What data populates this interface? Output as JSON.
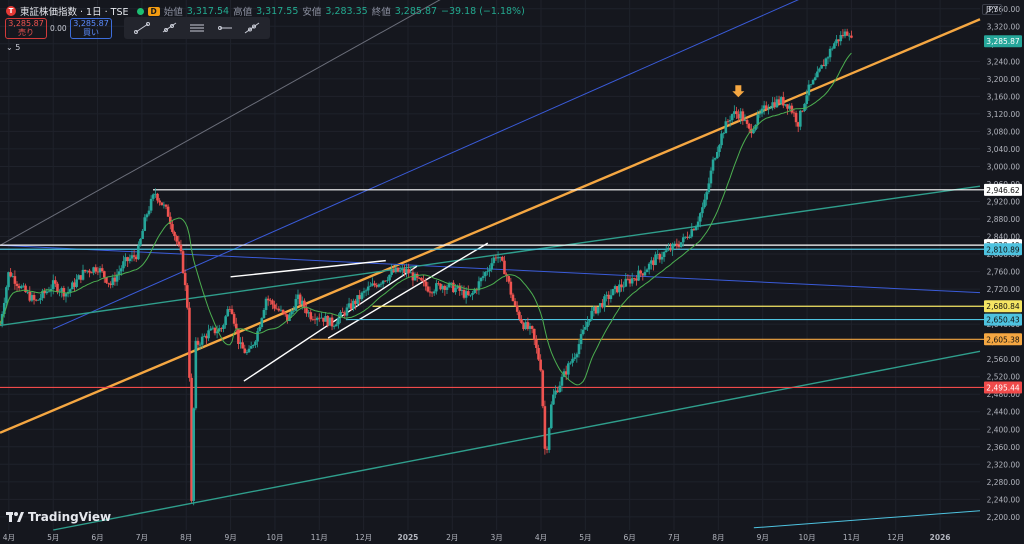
{
  "header": {
    "symbol": "東証株価指数 · 1日 · TSE",
    "d_badge": "D",
    "open_label": "始値",
    "open": "3,317.54",
    "high_label": "高値",
    "high": "3,317.55",
    "low_label": "安値",
    "low": "3,283.35",
    "close_label": "終値",
    "close": "3,285.87",
    "change": "−39.18 (−1.18%)"
  },
  "trade": {
    "sell_price": "3,285.87",
    "sell_label": "売り",
    "spread": "0.00",
    "buy_price": "3,285.87",
    "buy_label": "買い"
  },
  "toolbar": {
    "tools": [
      "trend-line-icon",
      "ray-icon",
      "parallel-channel-icon",
      "horizontal-ray-icon",
      "extended-line-icon"
    ]
  },
  "indicator_toggle": "5",
  "currency": "JPY",
  "brand": "TradingView",
  "chart_data": {
    "type": "candlestick",
    "ylim": [
      2170,
      3380
    ],
    "y_ticks": [
      2200,
      2240,
      2280,
      2320,
      2360,
      2400,
      2440,
      2480,
      2520,
      2560,
      2600,
      2640,
      2680,
      2720,
      2760,
      2800,
      2840,
      2880,
      2920,
      2960,
      3000,
      3040,
      3080,
      3120,
      3160,
      3200,
      3240,
      3280,
      3320,
      3360
    ],
    "x_labels": [
      "4月",
      "5月",
      "6月",
      "7月",
      "8月",
      "9月",
      "10月",
      "11月",
      "12月",
      "2025",
      "2月",
      "3月",
      "4月",
      "5月",
      "6月",
      "7月",
      "8月",
      "9月",
      "10月",
      "11月",
      "12月",
      "2026"
    ],
    "x_label_months": [
      0,
      1,
      2,
      3,
      4,
      5,
      6,
      7,
      8,
      9,
      10,
      11,
      12,
      13,
      14,
      15,
      16,
      17,
      18,
      19,
      20,
      21
    ],
    "x_range_months": [
      -0.2,
      21.9
    ],
    "price_path": [
      [
        -0.2,
        2640
      ],
      [
        0,
        2760
      ],
      [
        0.3,
        2720
      ],
      [
        0.6,
        2690
      ],
      [
        1,
        2730
      ],
      [
        1.3,
        2710
      ],
      [
        1.7,
        2760
      ],
      [
        2,
        2770
      ],
      [
        2.3,
        2730
      ],
      [
        2.6,
        2780
      ],
      [
        2.9,
        2800
      ],
      [
        3.1,
        2890
      ],
      [
        3.3,
        2940
      ],
      [
        3.6,
        2890
      ],
      [
        3.9,
        2790
      ],
      [
        4.05,
        2660
      ],
      [
        4.12,
        2230
      ],
      [
        4.2,
        2590
      ],
      [
        4.5,
        2620
      ],
      [
        4.8,
        2630
      ],
      [
        5,
        2690
      ],
      [
        5.2,
        2590
      ],
      [
        5.4,
        2570
      ],
      [
        5.6,
        2620
      ],
      [
        5.8,
        2700
      ],
      [
        6,
        2680
      ],
      [
        6.3,
        2650
      ],
      [
        6.5,
        2700
      ],
      [
        6.8,
        2660
      ],
      [
        7,
        2660
      ],
      [
        7.3,
        2640
      ],
      [
        7.6,
        2670
      ],
      [
        7.9,
        2700
      ],
      [
        8.1,
        2720
      ],
      [
        8.4,
        2740
      ],
      [
        8.7,
        2760
      ],
      [
        9,
        2760
      ],
      [
        9.2,
        2740
      ],
      [
        9.5,
        2720
      ],
      [
        9.8,
        2730
      ],
      [
        10.1,
        2720
      ],
      [
        10.4,
        2700
      ],
      [
        10.7,
        2750
      ],
      [
        11,
        2800
      ],
      [
        11.2,
        2760
      ],
      [
        11.4,
        2680
      ],
      [
        11.6,
        2640
      ],
      [
        11.8,
        2620
      ],
      [
        12.0,
        2540
      ],
      [
        12.1,
        2330
      ],
      [
        12.25,
        2470
      ],
      [
        12.5,
        2520
      ],
      [
        12.8,
        2580
      ],
      [
        13.1,
        2660
      ],
      [
        13.4,
        2690
      ],
      [
        13.7,
        2720
      ],
      [
        14,
        2740
      ],
      [
        14.3,
        2760
      ],
      [
        14.6,
        2790
      ],
      [
        14.9,
        2810
      ],
      [
        15.2,
        2830
      ],
      [
        15.5,
        2870
      ],
      [
        15.7,
        2920
      ],
      [
        15.9,
        3020
      ],
      [
        16.1,
        3080
      ],
      [
        16.3,
        3120
      ],
      [
        16.5,
        3120
      ],
      [
        16.7,
        3080
      ],
      [
        16.9,
        3110
      ],
      [
        17.1,
        3140
      ],
      [
        17.4,
        3150
      ],
      [
        17.6,
        3140
      ],
      [
        17.8,
        3100
      ],
      [
        18.0,
        3170
      ],
      [
        18.2,
        3200
      ],
      [
        18.4,
        3240
      ],
      [
        18.6,
        3280
      ],
      [
        18.8,
        3300
      ],
      [
        18.95,
        3310
      ],
      [
        19.0,
        3286
      ]
    ],
    "moving_average_color": "#4caf50",
    "horizontal_levels": [
      {
        "value": 2946.62,
        "label": "2,946.62",
        "color": "#ffffff",
        "text_color": "#111111",
        "start_month": 3.25
      },
      {
        "value": 2820.4,
        "label": "2,820.40",
        "color": "#ffffff",
        "text_color": "#111111",
        "start_month": -0.2
      },
      {
        "value": 2810.89,
        "label": "2,810.89",
        "color": "#4ec3e0",
        "text_color": "#111111",
        "start_month": -0.2
      },
      {
        "value": 2680.84,
        "label": "2,680.84",
        "color": "#f5e663",
        "text_color": "#111111",
        "start_month": 8.2
      },
      {
        "value": 2650.43,
        "label": "2,650.43",
        "color": "#4ec3e0",
        "text_color": "#111111",
        "start_month": 7.6
      },
      {
        "value": 2605.38,
        "label": "2,605.38",
        "color": "#f5a742",
        "text_color": "#111111",
        "start_month": 6.8
      },
      {
        "value": 2495.44,
        "label": "2,495.44",
        "color": "#f04a4a",
        "text_color": "#ffffff",
        "start_month": -0.2
      }
    ],
    "current_price": {
      "value": 3285.87,
      "label": "3,285.87",
      "color": "#26a69a"
    },
    "trend_lines": [
      {
        "name": "orange-resistance",
        "color": "#f5a742",
        "width": 2.4,
        "points": [
          [
            -0.2,
            2392
          ],
          [
            21.9,
            3336
          ]
        ]
      },
      {
        "name": "blue-upper",
        "color": "#3a5bd9",
        "width": 1,
        "points": [
          [
            1.0,
            2629
          ],
          [
            17.9,
            3385
          ]
        ]
      },
      {
        "name": "grey-upper",
        "color": "#6b6e7a",
        "width": 1,
        "points": [
          [
            -0.2,
            2820
          ],
          [
            9.8,
            3385
          ]
        ]
      },
      {
        "name": "blue-down",
        "color": "#3a5bd9",
        "width": 1,
        "points": [
          [
            -0.2,
            2820
          ],
          [
            21.9,
            2712
          ]
        ]
      },
      {
        "name": "teal-mid",
        "color": "#2f9e8c",
        "width": 1.4,
        "points": [
          [
            -0.2,
            2637
          ],
          [
            21.9,
            2955
          ]
        ]
      },
      {
        "name": "teal-low",
        "color": "#2f9e8c",
        "width": 1.4,
        "points": [
          [
            1.0,
            2170
          ],
          [
            21.9,
            2578
          ]
        ]
      },
      {
        "name": "cyan-bottom",
        "color": "#4ec3e0",
        "width": 1,
        "points": [
          [
            16.8,
            2175
          ],
          [
            21.9,
            2214
          ]
        ]
      },
      {
        "name": "white-wedge-top",
        "color": "#ffffff",
        "width": 1.4,
        "points": [
          [
            5.0,
            2748
          ],
          [
            8.5,
            2785
          ]
        ]
      },
      {
        "name": "white-wedge-bottom",
        "color": "#ffffff",
        "width": 1.4,
        "points": [
          [
            5.3,
            2510
          ],
          [
            9.2,
            2772
          ]
        ]
      },
      {
        "name": "white-short-top",
        "color": "#ffffff",
        "width": 1.4,
        "points": [
          [
            7.2,
            2608
          ],
          [
            10.8,
            2825
          ]
        ]
      }
    ],
    "arrow_marker": {
      "month": 16.45,
      "value": 3158,
      "color": "#f5a742"
    }
  }
}
